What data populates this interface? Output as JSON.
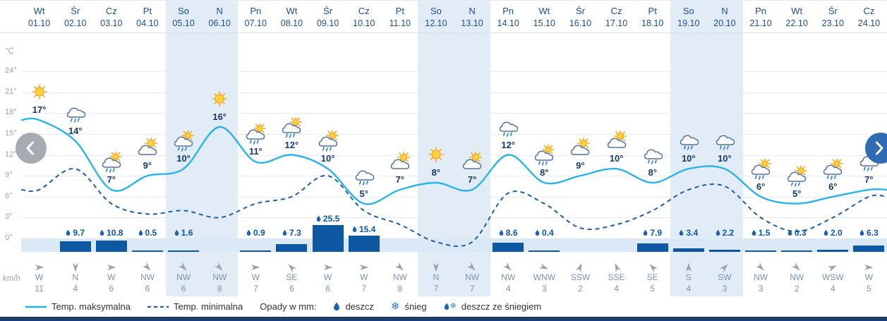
{
  "axis": {
    "unit_label": "°C",
    "wind_unit_label": "km/h",
    "ticks": [
      {
        "label": "24°",
        "value": 24
      },
      {
        "label": "21°",
        "value": 21
      },
      {
        "label": "18°",
        "value": 18
      },
      {
        "label": "15°",
        "value": 15
      },
      {
        "label": "12°",
        "value": 12
      },
      {
        "label": "9°",
        "value": 9
      },
      {
        "label": "6°",
        "value": 6
      },
      {
        "label": "3°",
        "value": 3
      },
      {
        "label": "0°",
        "value": 0
      }
    ]
  },
  "legend": {
    "temp_max_label": "Temp. maksymalna",
    "temp_min_label": "Temp. minimalna",
    "precip_label": "Opady w mm:",
    "rain_label": "deszcz",
    "snow_label": "śnieg",
    "rain_snow_label": "deszcz ze śniegiem"
  },
  "icons": {
    "snow_glyph": "❄"
  },
  "colors": {
    "header_text": "#1d4e8d",
    "temp_max_line": "#29b4e9",
    "temp_min_line": "#1a5fa8",
    "precip_bar": "#0d57a3",
    "precip_text": "#0b57a5",
    "weekend_bg": "#e1ecf7",
    "precip_band_bg": "#dbe9f7",
    "wind_text": "#7e93ab",
    "arrow": "#9aa2ab",
    "bottom_bar": "#1c3e71"
  },
  "days": [
    {
      "day_name": "Wt",
      "date": "01.10",
      "icon": "sun-icon",
      "temp_label": "17°",
      "precip_label": null,
      "wind_dir": "W",
      "wind_speed": "11",
      "weekend": false
    },
    {
      "day_name": "Śr",
      "date": "02.10",
      "icon": "rain-icon",
      "temp_label": "14°",
      "precip_label": "9.7",
      "wind_dir": "N",
      "wind_speed": "4",
      "weekend": false
    },
    {
      "day_name": "Cz",
      "date": "03.10",
      "icon": "sun-rain-icon",
      "temp_label": "7°",
      "precip_label": "10.8",
      "wind_dir": "W",
      "wind_speed": "6",
      "weekend": false
    },
    {
      "day_name": "Pt",
      "date": "04.10",
      "icon": "sun-cloud-icon",
      "temp_label": "9°",
      "precip_label": "0.5",
      "wind_dir": "NW",
      "wind_speed": "6",
      "weekend": false
    },
    {
      "day_name": "So",
      "date": "05.10",
      "icon": "sun-rain-icon",
      "temp_label": "10°",
      "precip_label": "1.6",
      "wind_dir": "NW",
      "wind_speed": "6",
      "weekend": true
    },
    {
      "day_name": "N",
      "date": "06.10",
      "icon": "sun-icon",
      "temp_label": "16°",
      "precip_label": null,
      "wind_dir": "NW",
      "wind_speed": "8",
      "weekend": true
    },
    {
      "day_name": "Pn",
      "date": "07.10",
      "icon": "sun-rain-icon",
      "temp_label": "11°",
      "precip_label": "0.9",
      "wind_dir": "W",
      "wind_speed": "7",
      "weekend": false
    },
    {
      "day_name": "Wt",
      "date": "08.10",
      "icon": "sun-rain-icon",
      "temp_label": "12°",
      "precip_label": "7.3",
      "wind_dir": "SE",
      "wind_speed": "6",
      "weekend": false
    },
    {
      "day_name": "Śr",
      "date": "09.10",
      "icon": "sun-rain-icon",
      "temp_label": "10°",
      "precip_label": "25.5",
      "wind_dir": "W",
      "wind_speed": "6",
      "weekend": false
    },
    {
      "day_name": "Cz",
      "date": "10.10",
      "icon": "rain-icon",
      "temp_label": "5°",
      "precip_label": "15.4",
      "wind_dir": "W",
      "wind_speed": "7",
      "weekend": false
    },
    {
      "day_name": "Pt",
      "date": "11.10",
      "icon": "sun-cloud-icon",
      "temp_label": "7°",
      "precip_label": null,
      "wind_dir": "NW",
      "wind_speed": "8",
      "weekend": false
    },
    {
      "day_name": "So",
      "date": "12.10",
      "icon": "sun-icon",
      "temp_label": "8°",
      "precip_label": null,
      "wind_dir": "N",
      "wind_speed": "7",
      "weekend": true
    },
    {
      "day_name": "N",
      "date": "13.10",
      "icon": "sun-cloud-icon",
      "temp_label": "7°",
      "precip_label": null,
      "wind_dir": "NW",
      "wind_speed": "7",
      "weekend": true
    },
    {
      "day_name": "Pn",
      "date": "14.10",
      "icon": "rain-icon",
      "temp_label": "12°",
      "precip_label": "8.6",
      "wind_dir": "NW",
      "wind_speed": "4",
      "weekend": false
    },
    {
      "day_name": "Wt",
      "date": "15.10",
      "icon": "sun-rain-icon",
      "temp_label": "8°",
      "precip_label": "0.4",
      "wind_dir": "WNW",
      "wind_speed": "3",
      "weekend": false
    },
    {
      "day_name": "Śr",
      "date": "16.10",
      "icon": "sun-cloud-icon",
      "temp_label": "9°",
      "precip_label": null,
      "wind_dir": "SSW",
      "wind_speed": "2",
      "weekend": false
    },
    {
      "day_name": "Cz",
      "date": "17.10",
      "icon": "sun-cloud-icon",
      "temp_label": "10°",
      "precip_label": null,
      "wind_dir": "SSE",
      "wind_speed": "4",
      "weekend": false
    },
    {
      "day_name": "Pt",
      "date": "18.10",
      "icon": "rain-icon",
      "temp_label": "8°",
      "precip_label": "7.9",
      "wind_dir": "SE",
      "wind_speed": "5",
      "weekend": false
    },
    {
      "day_name": "So",
      "date": "19.10",
      "icon": "rain-icon",
      "temp_label": "10°",
      "precip_label": "3.4",
      "wind_dir": "S",
      "wind_speed": "4",
      "weekend": true
    },
    {
      "day_name": "N",
      "date": "20.10",
      "icon": "rain-icon",
      "temp_label": "10°",
      "precip_label": "2.2",
      "wind_dir": "SW",
      "wind_speed": "3",
      "weekend": true
    },
    {
      "day_name": "Pn",
      "date": "21.10",
      "icon": "sun-rain-icon",
      "temp_label": "6°",
      "precip_label": "1.5",
      "wind_dir": "NW",
      "wind_speed": "3",
      "weekend": false
    },
    {
      "day_name": "Wt",
      "date": "22.10",
      "icon": "sun-rain-icon",
      "temp_label": "5°",
      "precip_label": "0.3",
      "wind_dir": "NW",
      "wind_speed": "2",
      "weekend": false
    },
    {
      "day_name": "Śr",
      "date": "23.10",
      "icon": "sun-rain-icon",
      "temp_label": "6°",
      "precip_label": "2.0",
      "wind_dir": "WSW",
      "wind_speed": "4",
      "weekend": false
    },
    {
      "day_name": "Cz",
      "date": "24.10",
      "icon": "rain-icon",
      "temp_label": "7°",
      "precip_label": "6.3",
      "wind_dir": "W",
      "wind_speed": "5",
      "weekend": false
    }
  ],
  "chart_data": {
    "type": "line",
    "x": [
      "01.10",
      "02.10",
      "03.10",
      "04.10",
      "05.10",
      "06.10",
      "07.10",
      "08.10",
      "09.10",
      "10.10",
      "11.10",
      "12.10",
      "13.10",
      "14.10",
      "15.10",
      "16.10",
      "17.10",
      "18.10",
      "19.10",
      "20.10",
      "21.10",
      "22.10",
      "23.10",
      "24.10"
    ],
    "series": [
      {
        "name": "Temp. maksymalna (°C)",
        "style": "solid",
        "values": [
          17,
          14,
          7,
          9,
          10,
          16,
          11,
          12,
          10,
          5,
          7,
          8,
          7,
          12,
          8,
          9,
          10,
          8,
          10,
          10,
          6,
          5,
          6,
          7
        ]
      },
      {
        "name": "Temp. minimalna (°C)",
        "style": "dashed",
        "values": [
          7,
          10,
          5,
          3.5,
          4,
          3,
          5,
          6,
          9,
          4,
          2,
          -0.5,
          -0.5,
          6.5,
          5,
          1.5,
          2,
          4,
          7,
          7.5,
          3,
          1,
          3,
          6
        ]
      },
      {
        "name": "Opady (mm)",
        "type": "bar",
        "values": [
          null,
          9.7,
          10.8,
          0.5,
          1.6,
          null,
          0.9,
          7.3,
          25.5,
          15.4,
          null,
          null,
          null,
          8.6,
          0.4,
          null,
          null,
          7.9,
          3.4,
          2.2,
          1.5,
          0.3,
          2.0,
          6.3
        ]
      }
    ],
    "ylabel": "°C",
    "ylim": [
      -3,
      27
    ],
    "y_ticks": [
      24,
      21,
      18,
      15,
      12,
      9,
      6,
      3,
      0
    ],
    "grid": true,
    "legend_position": "bottom",
    "wind": {
      "unit": "km/h",
      "directions": [
        "W",
        "N",
        "W",
        "NW",
        "NW",
        "NW",
        "W",
        "SE",
        "W",
        "W",
        "NW",
        "N",
        "NW",
        "NW",
        "WNW",
        "SSW",
        "SSE",
        "SE",
        "S",
        "SW",
        "NW",
        "NW",
        "WSW",
        "W"
      ],
      "speeds": [
        11,
        4,
        6,
        6,
        6,
        8,
        7,
        6,
        6,
        7,
        8,
        7,
        7,
        4,
        3,
        2,
        4,
        5,
        4,
        3,
        3,
        2,
        4,
        5
      ]
    }
  }
}
